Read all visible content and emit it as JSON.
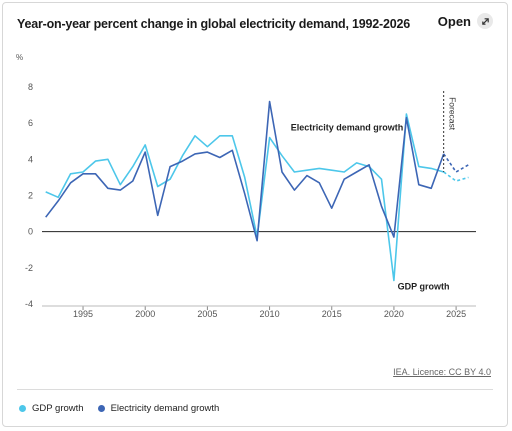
{
  "header": {
    "title": "Year-on-year percent change in global electricity demand, 1992-2026",
    "open_label": "Open"
  },
  "colors": {
    "gdp": "#4dc7ea",
    "electricity": "#3d66b5",
    "axis_text": "#555555",
    "grid": "#e4e4e4"
  },
  "license": "IEA. Licence: CC BY 4.0",
  "chart_data": {
    "type": "line",
    "title": "Year-on-year percent change in global electricity demand, 1992-2026",
    "ylabel": "%",
    "xlabel": "",
    "xlim": [
      1991.7,
      2026.6
    ],
    "ylim": [
      -4,
      8
    ],
    "yticks": [
      -4,
      -2,
      0,
      2,
      4,
      6,
      8
    ],
    "xticks": [
      1995,
      2000,
      2005,
      2010,
      2015,
      2020,
      2025
    ],
    "grid": "horizontal",
    "forecast_from": 2024,
    "x": [
      1992,
      1993,
      1994,
      1995,
      1996,
      1997,
      1998,
      1999,
      2000,
      2001,
      2002,
      2003,
      2004,
      2005,
      2006,
      2007,
      2008,
      2009,
      2010,
      2011,
      2012,
      2013,
      2014,
      2015,
      2016,
      2017,
      2018,
      2019,
      2020,
      2021,
      2022,
      2023,
      2024,
      2025,
      2026
    ],
    "series": [
      {
        "name": "GDP growth",
        "values": [
          2.2,
          1.9,
          3.2,
          3.3,
          3.9,
          4.0,
          2.6,
          3.6,
          4.8,
          2.5,
          2.9,
          4.2,
          5.3,
          4.7,
          5.3,
          5.3,
          3.0,
          -0.3,
          5.2,
          4.2,
          3.3,
          3.4,
          3.5,
          3.4,
          3.3,
          3.8,
          3.6,
          2.9,
          -2.7,
          6.5,
          3.6,
          3.5,
          3.3,
          2.8,
          3.0
        ]
      },
      {
        "name": "Electricity demand growth",
        "values": [
          0.8,
          1.7,
          2.7,
          3.2,
          3.2,
          2.4,
          2.3,
          2.8,
          4.4,
          0.9,
          3.6,
          3.9,
          4.3,
          4.4,
          4.1,
          4.5,
          2.1,
          -0.5,
          7.2,
          3.3,
          2.3,
          3.1,
          2.7,
          1.3,
          2.9,
          3.3,
          3.7,
          1.4,
          -0.3,
          6.3,
          2.6,
          2.4,
          4.3,
          3.3,
          3.7
        ]
      }
    ],
    "annotations": [
      {
        "text": "Electricity demand growth",
        "x": 2011.7,
        "y": 5.6,
        "anchor": "start"
      },
      {
        "text": "GDP growth",
        "x": 2020.3,
        "y": -3.2,
        "anchor": "start"
      },
      {
        "text": "Forecast",
        "x": 2024.0,
        "y": 7.0,
        "anchor": "vertical"
      }
    ]
  },
  "legend": [
    {
      "label": "GDP growth",
      "key": "gdp"
    },
    {
      "label": "Electricity demand growth",
      "key": "electricity"
    }
  ]
}
